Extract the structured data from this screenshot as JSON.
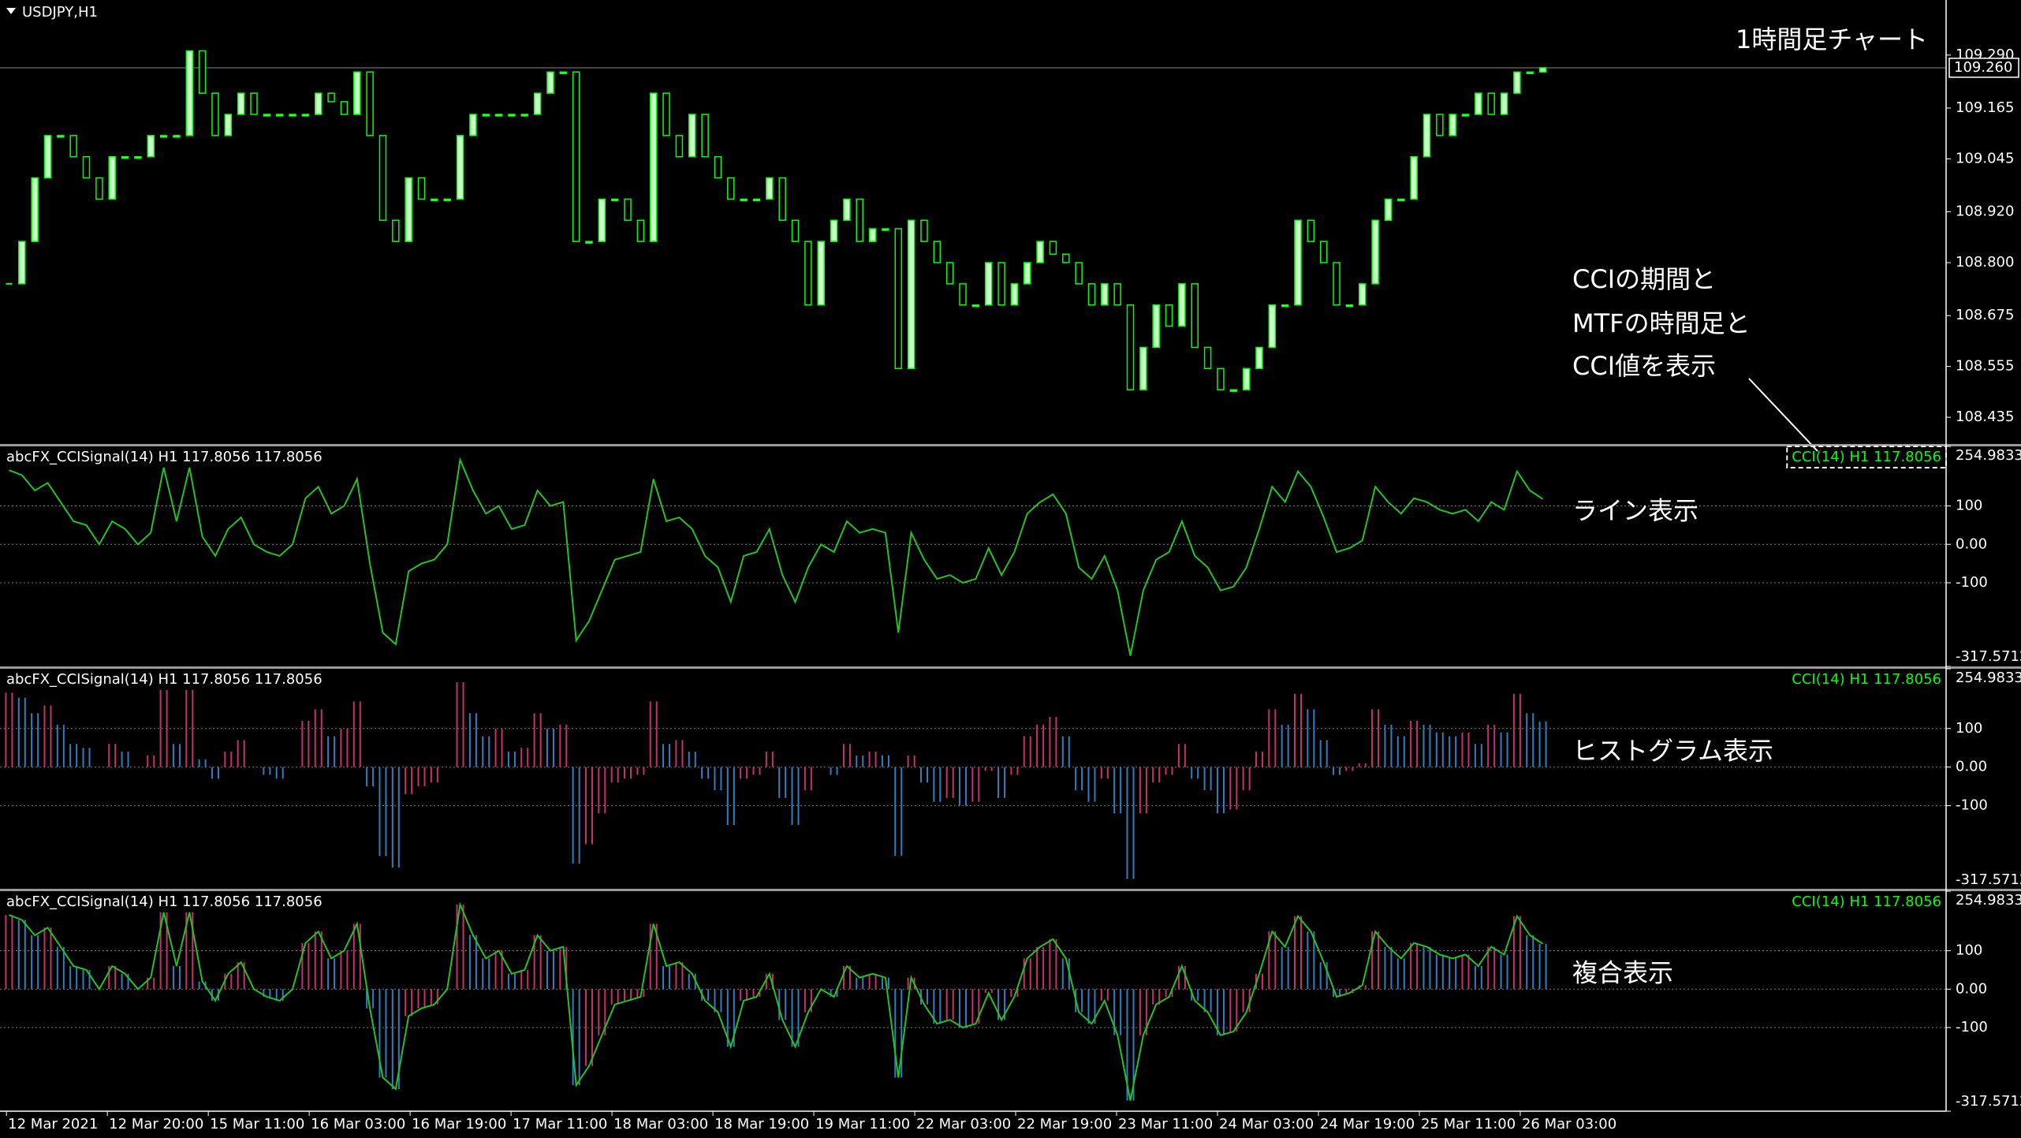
{
  "chart_data": [
    {
      "type": "candlestick",
      "title": "USDJPY,H1",
      "annotation": "1時間足チャート",
      "closes": [
        108.75,
        108.85,
        109.0,
        109.1,
        109.1,
        109.05,
        109.0,
        108.95,
        109.05,
        109.05,
        109.05,
        109.1,
        109.1,
        109.1,
        109.3,
        109.2,
        109.1,
        109.15,
        109.2,
        109.15,
        109.15,
        109.15,
        109.15,
        109.15,
        109.2,
        109.18,
        109.15,
        109.25,
        109.1,
        108.9,
        108.85,
        109.0,
        108.95,
        108.95,
        108.95,
        109.1,
        109.15,
        109.15,
        109.15,
        109.15,
        109.15,
        109.2,
        109.25,
        109.25,
        108.85,
        108.85,
        108.95,
        108.95,
        108.9,
        108.85,
        109.2,
        109.1,
        109.05,
        109.15,
        109.05,
        109.0,
        108.95,
        108.95,
        108.95,
        109.0,
        108.9,
        108.85,
        108.7,
        108.85,
        108.9,
        108.95,
        108.85,
        108.88,
        108.88,
        108.55,
        108.9,
        108.85,
        108.8,
        108.75,
        108.7,
        108.7,
        108.8,
        108.7,
        108.75,
        108.8,
        108.85,
        108.82,
        108.8,
        108.75,
        108.7,
        108.75,
        108.7,
        108.5,
        108.6,
        108.7,
        108.65,
        108.75,
        108.6,
        108.55,
        108.5,
        108.5,
        108.55,
        108.6,
        108.7,
        108.7,
        108.9,
        108.85,
        108.8,
        108.7,
        108.7,
        108.75,
        108.9,
        108.95,
        108.95,
        109.05,
        109.15,
        109.1,
        109.15,
        109.15,
        109.2,
        109.15,
        109.2,
        109.25,
        109.25,
        109.26
      ],
      "color_up": "#c8ffc8",
      "color_down": "#000000",
      "outline": "#00ff00",
      "ylim": [
        108.37,
        109.42
      ],
      "yticks": [
        {
          "value": 109.29,
          "label": "109.290"
        },
        109.165,
        109.045,
        {
          "value": 108.92,
          "label": "108.920"
        },
        {
          "value": 108.8,
          "label": "108.800"
        },
        108.675,
        108.555,
        108.435
      ],
      "last_price": {
        "value": 109.26,
        "label": "109.260"
      },
      "x_labels": [
        "12 Mar 2021",
        "12 Mar 20:00",
        "15 Mar 11:00",
        "16 Mar 03:00",
        "16 Mar 19:00",
        "17 Mar 11:00",
        "18 Mar 03:00",
        "18 Mar 19:00",
        "19 Mar 11:00",
        "22 Mar 03:00",
        "22 Mar 19:00",
        "23 Mar 11:00",
        "24 Mar 03:00",
        "24 Mar 19:00",
        "25 Mar 11:00",
        "26 Mar 03:00"
      ]
    },
    {
      "type": "cci",
      "values": [
        193,
        180,
        140,
        160,
        110,
        60,
        50,
        0,
        60,
        40,
        0,
        30,
        200,
        60,
        200,
        20,
        -30,
        40,
        70,
        0,
        -20,
        -30,
        0,
        120,
        150,
        80,
        100,
        170,
        -50,
        -230,
        -260,
        -70,
        -50,
        -40,
        0,
        220,
        140,
        80,
        100,
        40,
        50,
        140,
        100,
        110,
        -250,
        -200,
        -120,
        -40,
        -30,
        -20,
        170,
        60,
        70,
        40,
        -30,
        -60,
        -150,
        -30,
        -20,
        40,
        -80,
        -150,
        -60,
        0,
        -20,
        60,
        30,
        40,
        30,
        -230,
        30,
        -40,
        -90,
        -80,
        -100,
        -90,
        -10,
        -80,
        -20,
        80,
        110,
        130,
        80,
        -60,
        -90,
        -30,
        -120,
        -290,
        -120,
        -40,
        -20,
        60,
        -30,
        -60,
        -120,
        -110,
        -60,
        40,
        150,
        110,
        190,
        150,
        70,
        -20,
        -10,
        10,
        150,
        110,
        80,
        120,
        110,
        90,
        80,
        90,
        60,
        110,
        90,
        190,
        140,
        117.8056
      ],
      "ylim": [
        -317.5712,
        254.9833
      ],
      "yticks": [
        254.9833,
        100,
        {
          "value": 0,
          "label": "0.00"
        },
        -100,
        -317.5712
      ],
      "line_color": "#22c322",
      "histogram_colors": {
        "rising": "#c8306e",
        "falling": "#2f7fc0"
      },
      "grid": true,
      "annotation": [
        "CCIの期間と",
        "MTFの時間足と",
        "CCI値を表示"
      ],
      "panels": [
        {
          "indicator": "abcFX_CCISignal(14) H1 117.8056 117.8056",
          "readout": "CCI(14) H1 117.8056",
          "caption": "ライン表示",
          "style": "line"
        },
        {
          "indicator": "abcFX_CCISignal(14) H1 117.8056 117.8056",
          "readout": "CCI(14) H1 117.8056",
          "caption": "ヒストグラム表示",
          "style": "histogram"
        },
        {
          "indicator": "abcFX_CCISignal(14) H1 117.8056 117.8056",
          "readout": "CCI(14) H1 117.8056",
          "caption": "複合表示",
          "style": "both"
        }
      ]
    }
  ]
}
